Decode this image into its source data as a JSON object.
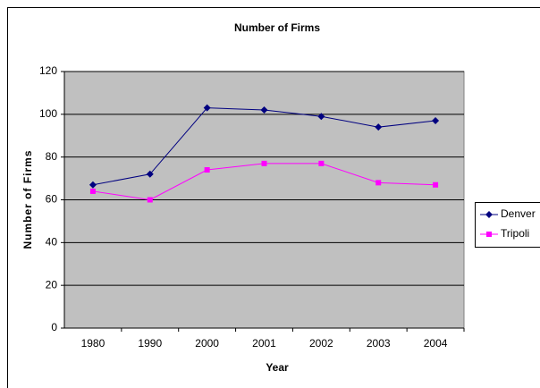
{
  "chart_data": {
    "type": "line",
    "title": "Number of Firms",
    "x_label": "Year",
    "y_label": "Number of Firms",
    "categories": [
      "1980",
      "1990",
      "2000",
      "2001",
      "2002",
      "2003",
      "2004"
    ],
    "series": [
      {
        "name": "Denver",
        "color": "#000080",
        "marker": "diamond",
        "values": [
          67,
          72,
          103,
          102,
          99,
          94,
          97
        ]
      },
      {
        "name": "Tripoli",
        "color": "#ff00ff",
        "marker": "square",
        "values": [
          64,
          60,
          74,
          77,
          77,
          68,
          67
        ]
      }
    ],
    "ylim": [
      0,
      120
    ],
    "yticks": [
      0,
      20,
      40,
      60,
      80,
      100,
      120
    ],
    "grid": true,
    "legend": "right"
  }
}
